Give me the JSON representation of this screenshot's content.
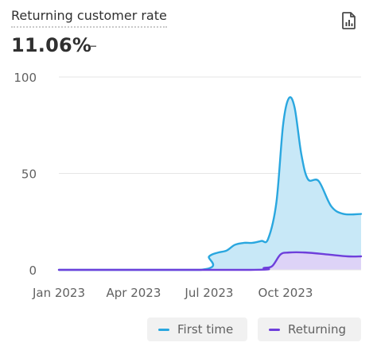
{
  "header": {
    "title": "Returning customer rate",
    "metric_value": "11.06%",
    "metric_change": "–",
    "report_icon": "report-icon"
  },
  "colors": {
    "first_time_line": "#2aa7df",
    "first_time_fill": "#c8e8f7",
    "returning_line": "#6e3fdb",
    "returning_fill": "#ddd3f7",
    "grid": "#e6e6e6",
    "axis_text": "#616161"
  },
  "legend": {
    "first_time_label": "First time",
    "returning_label": "Returning"
  },
  "chart_data": {
    "type": "area",
    "title": "",
    "xlabel": "",
    "ylabel": "",
    "ylim": [
      0,
      100
    ],
    "yticks": [
      0,
      50,
      100
    ],
    "xlim": [
      "2023-01-01",
      "2023-12-31"
    ],
    "xtick_labels": [
      {
        "date": "2023-01-01",
        "label": "Jan 2023"
      },
      {
        "date": "2023-04-01",
        "label": "Apr 2023"
      },
      {
        "date": "2023-07-01",
        "label": "Jul 2023"
      },
      {
        "date": "2023-10-01",
        "label": "Oct 2023"
      }
    ],
    "grid": true,
    "legend_position": "bottom-right",
    "series": [
      {
        "name": "First time",
        "points": [
          [
            "2023-01-01",
            0
          ],
          [
            "2023-06-20",
            0
          ],
          [
            "2023-07-01",
            7
          ],
          [
            "2023-07-12",
            9
          ],
          [
            "2023-07-22",
            10
          ],
          [
            "2023-08-01",
            13
          ],
          [
            "2023-08-12",
            14
          ],
          [
            "2023-08-22",
            14
          ],
          [
            "2023-09-02",
            15
          ],
          [
            "2023-09-10",
            16
          ],
          [
            "2023-09-20",
            35
          ],
          [
            "2023-09-28",
            75
          ],
          [
            "2023-10-05",
            89
          ],
          [
            "2023-10-12",
            84
          ],
          [
            "2023-10-20",
            60
          ],
          [
            "2023-10-28",
            47
          ],
          [
            "2023-11-10",
            46
          ],
          [
            "2023-11-25",
            33
          ],
          [
            "2023-12-10",
            29
          ],
          [
            "2023-12-31",
            29
          ]
        ]
      },
      {
        "name": "Returning",
        "points": [
          [
            "2023-01-01",
            0
          ],
          [
            "2023-08-20",
            0
          ],
          [
            "2023-09-05",
            1
          ],
          [
            "2023-09-15",
            2
          ],
          [
            "2023-09-25",
            8
          ],
          [
            "2023-10-05",
            9
          ],
          [
            "2023-10-25",
            9
          ],
          [
            "2023-11-20",
            8
          ],
          [
            "2023-12-15",
            7
          ],
          [
            "2023-12-31",
            7
          ]
        ]
      }
    ]
  }
}
